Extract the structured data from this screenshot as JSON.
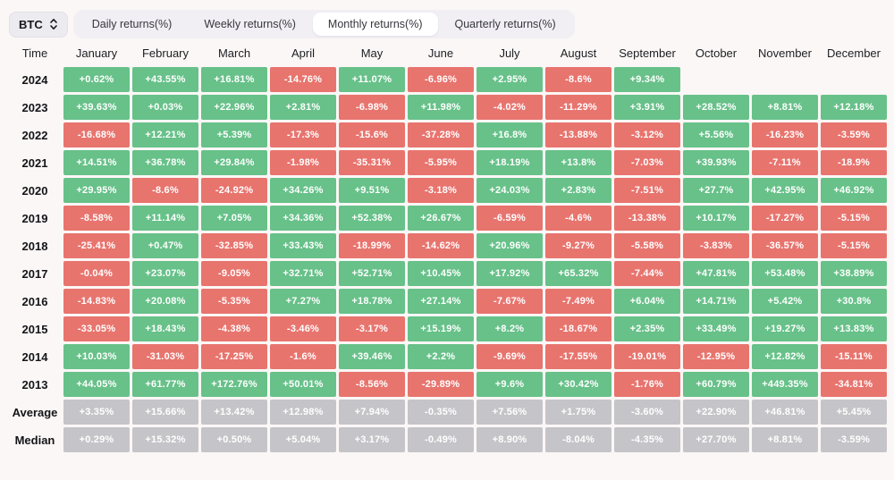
{
  "colors": {
    "positive": "#67c189",
    "negative": "#e8746e",
    "summary": "#c5c4c8",
    "page_background": "#fbf7f6"
  },
  "toolbar": {
    "asset": "BTC",
    "tabs": [
      {
        "label": "Daily returns(%)",
        "active": false
      },
      {
        "label": "Weekly returns(%)",
        "active": false
      },
      {
        "label": "Monthly returns(%)",
        "active": true
      },
      {
        "label": "Quarterly returns(%)",
        "active": false
      }
    ]
  },
  "table": {
    "time_header": "Time",
    "months": [
      "January",
      "February",
      "March",
      "April",
      "May",
      "June",
      "July",
      "August",
      "September",
      "October",
      "November",
      "December"
    ],
    "rows": [
      {
        "label": "2024",
        "type": "year",
        "values": [
          "+0.62%",
          "+43.55%",
          "+16.81%",
          "-14.76%",
          "+11.07%",
          "-6.96%",
          "+2.95%",
          "-8.6%",
          "+9.34%",
          "",
          "",
          ""
        ]
      },
      {
        "label": "2023",
        "type": "year",
        "values": [
          "+39.63%",
          "+0.03%",
          "+22.96%",
          "+2.81%",
          "-6.98%",
          "+11.98%",
          "-4.02%",
          "-11.29%",
          "+3.91%",
          "+28.52%",
          "+8.81%",
          "+12.18%"
        ]
      },
      {
        "label": "2022",
        "type": "year",
        "values": [
          "-16.68%",
          "+12.21%",
          "+5.39%",
          "-17.3%",
          "-15.6%",
          "-37.28%",
          "+16.8%",
          "-13.88%",
          "-3.12%",
          "+5.56%",
          "-16.23%",
          "-3.59%"
        ]
      },
      {
        "label": "2021",
        "type": "year",
        "values": [
          "+14.51%",
          "+36.78%",
          "+29.84%",
          "-1.98%",
          "-35.31%",
          "-5.95%",
          "+18.19%",
          "+13.8%",
          "-7.03%",
          "+39.93%",
          "-7.11%",
          "-18.9%"
        ]
      },
      {
        "label": "2020",
        "type": "year",
        "values": [
          "+29.95%",
          "-8.6%",
          "-24.92%",
          "+34.26%",
          "+9.51%",
          "-3.18%",
          "+24.03%",
          "+2.83%",
          "-7.51%",
          "+27.7%",
          "+42.95%",
          "+46.92%"
        ]
      },
      {
        "label": "2019",
        "type": "year",
        "values": [
          "-8.58%",
          "+11.14%",
          "+7.05%",
          "+34.36%",
          "+52.38%",
          "+26.67%",
          "-6.59%",
          "-4.6%",
          "-13.38%",
          "+10.17%",
          "-17.27%",
          "-5.15%"
        ]
      },
      {
        "label": "2018",
        "type": "year",
        "values": [
          "-25.41%",
          "+0.47%",
          "-32.85%",
          "+33.43%",
          "-18.99%",
          "-14.62%",
          "+20.96%",
          "-9.27%",
          "-5.58%",
          "-3.83%",
          "-36.57%",
          "-5.15%"
        ]
      },
      {
        "label": "2017",
        "type": "year",
        "values": [
          "-0.04%",
          "+23.07%",
          "-9.05%",
          "+32.71%",
          "+52.71%",
          "+10.45%",
          "+17.92%",
          "+65.32%",
          "-7.44%",
          "+47.81%",
          "+53.48%",
          "+38.89%"
        ]
      },
      {
        "label": "2016",
        "type": "year",
        "values": [
          "-14.83%",
          "+20.08%",
          "-5.35%",
          "+7.27%",
          "+18.78%",
          "+27.14%",
          "-7.67%",
          "-7.49%",
          "+6.04%",
          "+14.71%",
          "+5.42%",
          "+30.8%"
        ]
      },
      {
        "label": "2015",
        "type": "year",
        "values": [
          "-33.05%",
          "+18.43%",
          "-4.38%",
          "-3.46%",
          "-3.17%",
          "+15.19%",
          "+8.2%",
          "-18.67%",
          "+2.35%",
          "+33.49%",
          "+19.27%",
          "+13.83%"
        ]
      },
      {
        "label": "2014",
        "type": "year",
        "values": [
          "+10.03%",
          "-31.03%",
          "-17.25%",
          "-1.6%",
          "+39.46%",
          "+2.2%",
          "-9.69%",
          "-17.55%",
          "-19.01%",
          "-12.95%",
          "+12.82%",
          "-15.11%"
        ]
      },
      {
        "label": "2013",
        "type": "year",
        "values": [
          "+44.05%",
          "+61.77%",
          "+172.76%",
          "+50.01%",
          "-8.56%",
          "-29.89%",
          "+9.6%",
          "+30.42%",
          "-1.76%",
          "+60.79%",
          "+449.35%",
          "-34.81%"
        ]
      },
      {
        "label": "Average",
        "type": "summary",
        "values": [
          "+3.35%",
          "+15.66%",
          "+13.42%",
          "+12.98%",
          "+7.94%",
          "-0.35%",
          "+7.56%",
          "+1.75%",
          "-3.60%",
          "+22.90%",
          "+46.81%",
          "+5.45%"
        ]
      },
      {
        "label": "Median",
        "type": "summary",
        "values": [
          "+0.29%",
          "+15.32%",
          "+0.50%",
          "+5.04%",
          "+3.17%",
          "-0.49%",
          "+8.90%",
          "-8.04%",
          "-4.35%",
          "+27.70%",
          "+8.81%",
          "-3.59%"
        ]
      }
    ]
  }
}
